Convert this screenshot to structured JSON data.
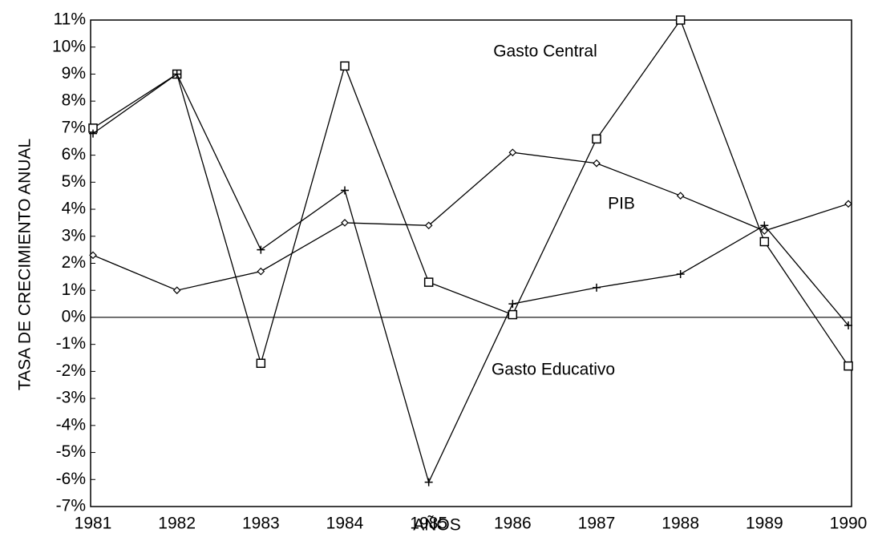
{
  "chart_data": {
    "type": "line",
    "xlabel": "AÑOS",
    "ylabel": "TASA DE CRECIMIENTO ANUAL",
    "categories": [
      "1981",
      "1982",
      "1983",
      "1984",
      "1985",
      "1986",
      "1987",
      "1988",
      "1989",
      "1990"
    ],
    "series": [
      {
        "name": "Gasto Central",
        "color": "#000000",
        "marker": "square",
        "values": [
          7.0,
          9.0,
          -1.7,
          9.3,
          1.3,
          0.1,
          6.6,
          11.0,
          2.8,
          -1.8
        ]
      },
      {
        "name": "Gasto Educativo",
        "color": "#000000",
        "marker": "plus",
        "values": [
          6.8,
          9.0,
          2.5,
          4.7,
          -6.1,
          0.5,
          1.1,
          1.6,
          3.4,
          -0.3
        ]
      },
      {
        "name": "PIB",
        "color": "#000000",
        "marker": "diamond",
        "values": [
          2.3,
          1.0,
          1.7,
          3.5,
          3.4,
          6.1,
          5.7,
          4.5,
          3.2,
          4.2
        ]
      }
    ],
    "ylim": [
      -7,
      11
    ],
    "yticks": [
      {
        "value": -7,
        "label": "-7%"
      },
      {
        "value": -6,
        "label": "-6%"
      },
      {
        "value": -5,
        "label": "-5%"
      },
      {
        "value": -4,
        "label": "-4%"
      },
      {
        "value": -3,
        "label": "-3%"
      },
      {
        "value": -2,
        "label": "-2%"
      },
      {
        "value": -1,
        "label": "-1%"
      },
      {
        "value": 0,
        "label": "0%"
      },
      {
        "value": 1,
        "label": "1%"
      },
      {
        "value": 2,
        "label": "2%"
      },
      {
        "value": 3,
        "label": "3%"
      },
      {
        "value": 4,
        "label": "4%"
      },
      {
        "value": 5,
        "label": "5%"
      },
      {
        "value": 6,
        "label": "6%"
      },
      {
        "value": 7,
        "label": "7%"
      },
      {
        "value": 8,
        "label": "8%"
      },
      {
        "value": 9,
        "label": "9%"
      },
      {
        "value": 10,
        "label": "10%"
      },
      {
        "value": 11,
        "label": "11%"
      }
    ],
    "grid": false
  }
}
